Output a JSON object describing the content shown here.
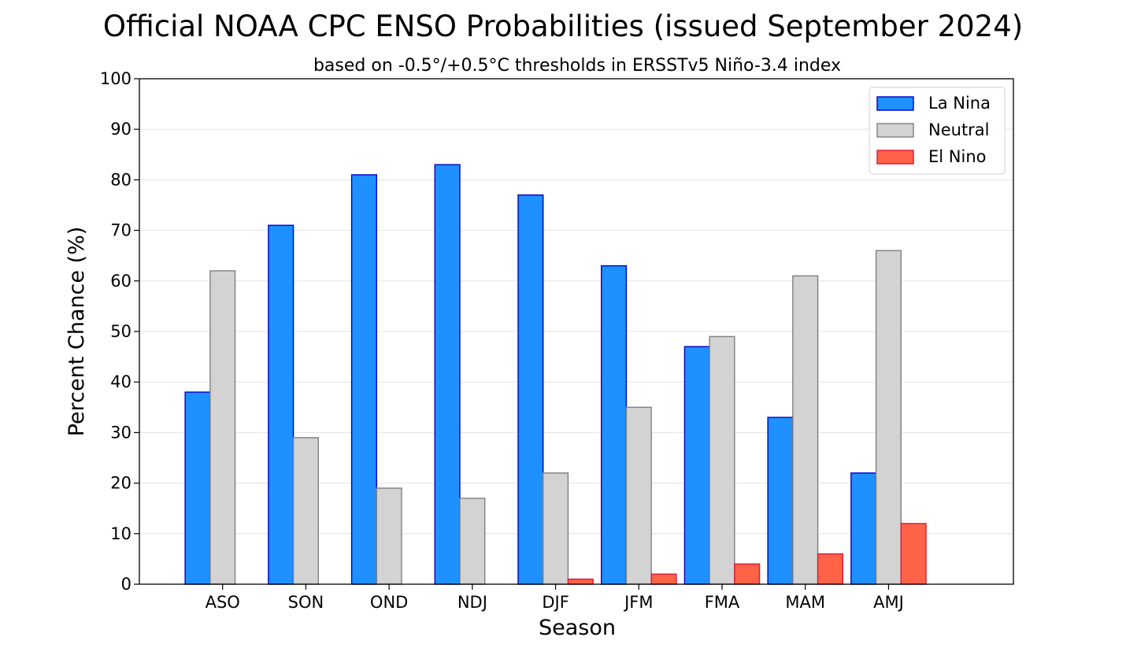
{
  "chart_data": {
    "type": "bar",
    "title": "Official NOAA CPC ENSO Probabilities (issued September 2024)",
    "subtitle": "based on -0.5°/+0.5°C thresholds in ERSSTv5 Niño-3.4 index",
    "xlabel": "Season",
    "ylabel": "Percent Chance (%)",
    "ylim": [
      0,
      100
    ],
    "yticks": [
      "0",
      "10",
      "20",
      "30",
      "40",
      "50",
      "60",
      "70",
      "80",
      "90",
      "100"
    ],
    "grid": "horizontal",
    "legend_position": "top-right",
    "categories": [
      "ASO",
      "SON",
      "OND",
      "NDJ",
      "DJF",
      "JFM",
      "FMA",
      "MAM",
      "AMJ"
    ],
    "series": [
      {
        "name": "La Nina",
        "color": "#1e90ff",
        "edge_color": "#0000cd",
        "values": [
          38,
          71,
          81,
          83,
          77,
          63,
          47,
          33,
          22
        ]
      },
      {
        "name": "Neutral",
        "color": "#d3d3d3",
        "edge_color": "#808080",
        "values": [
          62,
          29,
          19,
          17,
          22,
          35,
          49,
          61,
          66
        ]
      },
      {
        "name": "El Nino",
        "color": "#ff6347",
        "edge_color": "#dc143c",
        "values": [
          0,
          0,
          0,
          0,
          1,
          2,
          4,
          6,
          12
        ]
      }
    ]
  }
}
